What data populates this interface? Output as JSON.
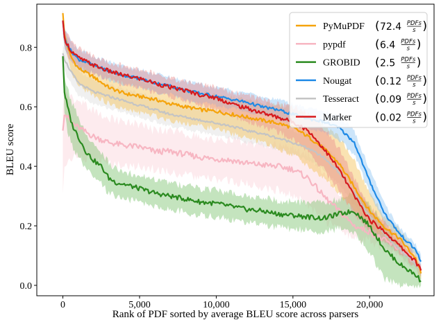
{
  "chart_data": {
    "type": "line",
    "title": "",
    "xlabel": "Rank of PDF sorted by average BLEU score across parsers",
    "ylabel": "BLEU score",
    "xlim": [
      -1700,
      24200
    ],
    "ylim": [
      -0.035,
      0.945
    ],
    "x_ticks": [
      0,
      5000,
      10000,
      15000,
      20000
    ],
    "x_tick_labels": [
      "0",
      "5,000",
      "10,000",
      "15,000",
      "20,000"
    ],
    "y_ticks": [
      0.0,
      0.2,
      0.4,
      0.6,
      0.8
    ],
    "y_tick_labels": [
      "0.0",
      "0.2",
      "0.4",
      "0.6",
      "0.8"
    ],
    "grid": false,
    "legend_position": "top-right",
    "rate_unit": {
      "numerator": "PDFs",
      "denominator": "s"
    },
    "series": [
      {
        "name": "PyMuPDF",
        "rate": "72.4",
        "color": "#f5a30a",
        "band_color": "#f5c055",
        "x": [
          0,
          100,
          500,
          1000,
          2000,
          3000,
          4000,
          5000,
          6000,
          7000,
          8000,
          9000,
          10000,
          11000,
          12000,
          13000,
          14000,
          15000,
          16000,
          17000,
          18000,
          19000,
          20000,
          21000,
          22000,
          23000,
          23350
        ],
        "mean": [
          0.915,
          0.84,
          0.77,
          0.73,
          0.7,
          0.665,
          0.645,
          0.635,
          0.625,
          0.61,
          0.6,
          0.59,
          0.585,
          0.575,
          0.565,
          0.555,
          0.545,
          0.53,
          0.5,
          0.46,
          0.41,
          0.33,
          0.25,
          0.195,
          0.155,
          0.09,
          0.04
        ],
        "lo": [
          0.88,
          0.8,
          0.72,
          0.67,
          0.64,
          0.61,
          0.59,
          0.58,
          0.57,
          0.555,
          0.545,
          0.535,
          0.525,
          0.51,
          0.495,
          0.48,
          0.46,
          0.44,
          0.4,
          0.36,
          0.31,
          0.25,
          0.2,
          0.16,
          0.125,
          0.07,
          0.02
        ],
        "hi": [
          0.93,
          0.87,
          0.8,
          0.77,
          0.74,
          0.715,
          0.7,
          0.69,
          0.675,
          0.665,
          0.655,
          0.645,
          0.64,
          0.63,
          0.625,
          0.615,
          0.605,
          0.595,
          0.57,
          0.54,
          0.5,
          0.42,
          0.31,
          0.23,
          0.185,
          0.115,
          0.06
        ]
      },
      {
        "name": "pypdf",
        "rate": "6.4",
        "color": "#f7b6c2",
        "band_color": "#fbd3da",
        "x": [
          0,
          100,
          500,
          1000,
          2000,
          3000,
          4000,
          5000,
          6000,
          7000,
          8000,
          9000,
          10000,
          11000,
          12000,
          13000,
          14000,
          15000,
          16000,
          17000,
          18000,
          19000,
          20000,
          21000,
          22000,
          23000,
          23350
        ],
        "mean": [
          0.52,
          0.58,
          0.55,
          0.53,
          0.5,
          0.48,
          0.47,
          0.465,
          0.45,
          0.45,
          0.44,
          0.43,
          0.425,
          0.42,
          0.41,
          0.405,
          0.4,
          0.39,
          0.36,
          0.3,
          0.25,
          0.2,
          0.18,
          0.15,
          0.12,
          0.08,
          0.05
        ],
        "lo": [
          0.3,
          0.4,
          0.43,
          0.43,
          0.42,
          0.41,
          0.4,
          0.4,
          0.39,
          0.38,
          0.37,
          0.36,
          0.355,
          0.35,
          0.34,
          0.33,
          0.32,
          0.3,
          0.27,
          0.22,
          0.19,
          0.16,
          0.15,
          0.12,
          0.1,
          0.06,
          0.03
        ],
        "hi": [
          0.6,
          0.65,
          0.63,
          0.62,
          0.59,
          0.56,
          0.55,
          0.54,
          0.52,
          0.52,
          0.51,
          0.5,
          0.49,
          0.49,
          0.48,
          0.47,
          0.47,
          0.46,
          0.44,
          0.38,
          0.31,
          0.25,
          0.21,
          0.18,
          0.15,
          0.1,
          0.07
        ]
      },
      {
        "name": "GROBID",
        "rate": "2.5",
        "color": "#2a8a1f",
        "band_color": "#7cc46e",
        "x": [
          0,
          100,
          300,
          600,
          1000,
          1500,
          2000,
          2500,
          3000,
          3500,
          4000,
          5000,
          6000,
          7000,
          8000,
          9000,
          10000,
          11000,
          12000,
          13000,
          14000,
          15000,
          16000,
          17000,
          18000,
          19000,
          20000,
          21000,
          22000,
          23000,
          23350
        ],
        "mean": [
          0.77,
          0.65,
          0.6,
          0.54,
          0.5,
          0.45,
          0.42,
          0.4,
          0.36,
          0.345,
          0.34,
          0.325,
          0.31,
          0.3,
          0.29,
          0.28,
          0.275,
          0.265,
          0.255,
          0.25,
          0.24,
          0.235,
          0.23,
          0.225,
          0.24,
          0.25,
          0.2,
          0.12,
          0.07,
          0.035,
          0.015
        ],
        "lo": [
          0.72,
          0.58,
          0.52,
          0.47,
          0.43,
          0.39,
          0.36,
          0.34,
          0.31,
          0.3,
          0.29,
          0.28,
          0.265,
          0.255,
          0.245,
          0.235,
          0.23,
          0.22,
          0.21,
          0.205,
          0.195,
          0.19,
          0.185,
          0.18,
          0.19,
          0.18,
          0.11,
          0.02,
          0.0,
          0.0,
          0.0
        ],
        "hi": [
          0.8,
          0.71,
          0.66,
          0.61,
          0.57,
          0.51,
          0.48,
          0.45,
          0.41,
          0.39,
          0.38,
          0.37,
          0.355,
          0.345,
          0.335,
          0.325,
          0.32,
          0.31,
          0.3,
          0.295,
          0.285,
          0.28,
          0.28,
          0.275,
          0.29,
          0.31,
          0.27,
          0.2,
          0.14,
          0.08,
          0.05
        ]
      },
      {
        "name": "Nougat",
        "rate": "0.12",
        "color": "#1f8ae6",
        "band_color": "#8fc6f3",
        "x": [
          0,
          100,
          500,
          1000,
          2000,
          3000,
          4000,
          5000,
          6000,
          7000,
          8000,
          9000,
          10000,
          11000,
          12000,
          13000,
          14000,
          15000,
          16000,
          17000,
          18000,
          19000,
          20000,
          21000,
          22000,
          23000,
          23350
        ],
        "mean": [
          0.89,
          0.83,
          0.79,
          0.76,
          0.74,
          0.72,
          0.705,
          0.695,
          0.68,
          0.67,
          0.655,
          0.645,
          0.635,
          0.625,
          0.615,
          0.6,
          0.59,
          0.575,
          0.56,
          0.55,
          0.53,
          0.48,
          0.35,
          0.24,
          0.17,
          0.12,
          0.08
        ],
        "lo": [
          0.85,
          0.8,
          0.76,
          0.73,
          0.71,
          0.69,
          0.675,
          0.665,
          0.65,
          0.64,
          0.625,
          0.615,
          0.605,
          0.595,
          0.585,
          0.57,
          0.56,
          0.545,
          0.53,
          0.515,
          0.49,
          0.44,
          0.31,
          0.21,
          0.15,
          0.1,
          0.06
        ],
        "hi": [
          0.92,
          0.86,
          0.82,
          0.79,
          0.77,
          0.75,
          0.735,
          0.725,
          0.71,
          0.7,
          0.685,
          0.675,
          0.665,
          0.655,
          0.645,
          0.635,
          0.625,
          0.61,
          0.595,
          0.585,
          0.57,
          0.52,
          0.39,
          0.27,
          0.19,
          0.14,
          0.1
        ]
      },
      {
        "name": "Tesseract",
        "rate": "0.09",
        "color": "#c4c4c4",
        "band_color": "#dedede",
        "x": [
          0,
          100,
          500,
          1000,
          2000,
          3000,
          4000,
          5000,
          6000,
          7000,
          8000,
          9000,
          10000,
          11000,
          12000,
          13000,
          14000,
          15000,
          16000,
          17000,
          18000,
          19000,
          20000,
          21000,
          22000,
          23000,
          23350
        ],
        "mean": [
          0.78,
          0.76,
          0.72,
          0.68,
          0.65,
          0.635,
          0.62,
          0.605,
          0.59,
          0.575,
          0.565,
          0.555,
          0.545,
          0.535,
          0.52,
          0.51,
          0.495,
          0.48,
          0.46,
          0.43,
          0.38,
          0.31,
          0.23,
          0.17,
          0.12,
          0.07,
          0.04
        ],
        "lo": [
          0.74,
          0.72,
          0.68,
          0.64,
          0.61,
          0.595,
          0.58,
          0.565,
          0.55,
          0.535,
          0.525,
          0.515,
          0.505,
          0.495,
          0.48,
          0.47,
          0.455,
          0.44,
          0.42,
          0.39,
          0.34,
          0.27,
          0.2,
          0.14,
          0.1,
          0.05,
          0.02
        ],
        "hi": [
          0.81,
          0.8,
          0.76,
          0.72,
          0.69,
          0.675,
          0.66,
          0.645,
          0.63,
          0.615,
          0.605,
          0.595,
          0.585,
          0.575,
          0.56,
          0.55,
          0.535,
          0.52,
          0.5,
          0.47,
          0.42,
          0.35,
          0.26,
          0.2,
          0.14,
          0.09,
          0.06
        ]
      },
      {
        "name": "Marker",
        "rate": "0.02",
        "color": "#d7191c",
        "band_color": "#eb8f8f",
        "x": [
          0,
          100,
          500,
          1000,
          2000,
          3000,
          4000,
          5000,
          6000,
          7000,
          8000,
          9000,
          10000,
          11000,
          12000,
          13000,
          14000,
          15000,
          16000,
          17000,
          18000,
          19000,
          20000,
          21000,
          22000,
          23000,
          23350
        ],
        "mean": [
          0.89,
          0.83,
          0.79,
          0.765,
          0.74,
          0.72,
          0.705,
          0.695,
          0.68,
          0.665,
          0.655,
          0.64,
          0.63,
          0.61,
          0.595,
          0.58,
          0.565,
          0.55,
          0.52,
          0.46,
          0.39,
          0.3,
          0.22,
          0.18,
          0.13,
          0.08,
          0.05
        ],
        "lo": [
          0.85,
          0.8,
          0.76,
          0.735,
          0.71,
          0.69,
          0.675,
          0.665,
          0.65,
          0.635,
          0.62,
          0.605,
          0.59,
          0.57,
          0.55,
          0.535,
          0.515,
          0.49,
          0.45,
          0.39,
          0.32,
          0.24,
          0.18,
          0.15,
          0.11,
          0.06,
          0.03
        ],
        "hi": [
          0.92,
          0.86,
          0.82,
          0.795,
          0.77,
          0.75,
          0.735,
          0.725,
          0.71,
          0.695,
          0.685,
          0.675,
          0.665,
          0.65,
          0.64,
          0.625,
          0.61,
          0.6,
          0.58,
          0.53,
          0.46,
          0.36,
          0.26,
          0.21,
          0.15,
          0.1,
          0.07
        ]
      }
    ]
  }
}
